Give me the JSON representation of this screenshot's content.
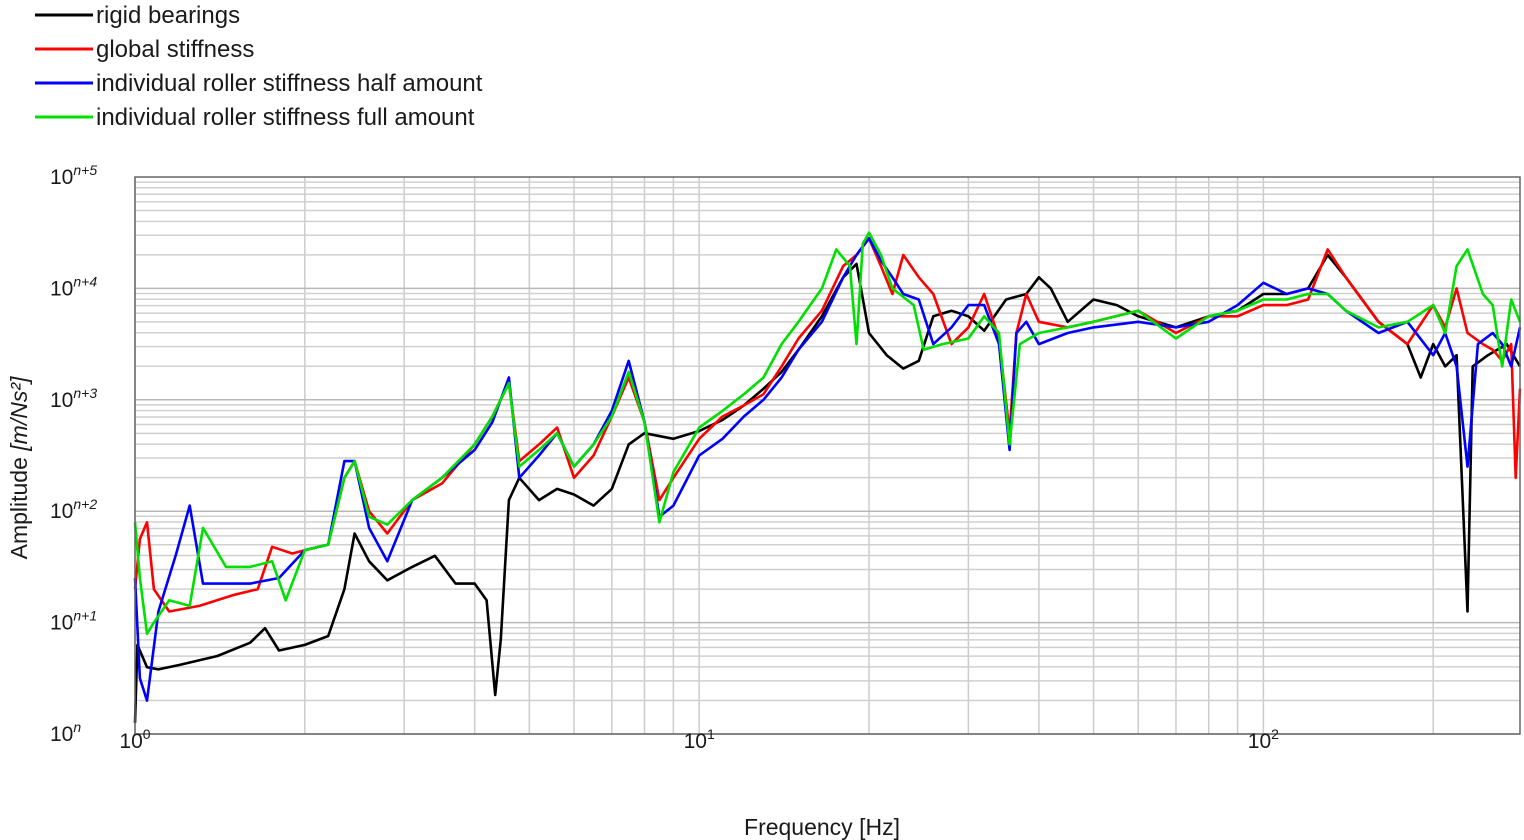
{
  "chart_data": {
    "type": "line",
    "title": "",
    "xlabel": "Frequency [Hz]",
    "ylabel_prefix": "Amplitude ",
    "ylabel_unit": "[m/Ns²]",
    "x_scale": "log",
    "y_scale": "log",
    "xlim": [
      1,
      285
    ],
    "ylim": [
      0,
      5
    ],
    "grid": true,
    "legend_position": "top-left, above plot",
    "x_ticks": [
      {
        "value": 1,
        "base": "10",
        "exp": "0"
      },
      {
        "value": 10,
        "base": "10",
        "exp": "1"
      },
      {
        "value": 100,
        "base": "10",
        "exp": "2"
      }
    ],
    "y_ticks": [
      {
        "value": 0,
        "base": "10",
        "exp": "n"
      },
      {
        "value": 1,
        "base": "10",
        "exp": "n+1"
      },
      {
        "value": 2,
        "base": "10",
        "exp": "n+2"
      },
      {
        "value": 3,
        "base": "10",
        "exp": "n+3"
      },
      {
        "value": 4,
        "base": "10",
        "exp": "n+4"
      },
      {
        "value": 5,
        "base": "10",
        "exp": "n+5"
      }
    ],
    "y_units_note": "y values are exponents above 10^n",
    "series": [
      {
        "name": "rigid bearings",
        "color": "#000000",
        "points": [
          [
            1.0,
            0.1
          ],
          [
            1.01,
            0.8
          ],
          [
            1.05,
            0.6
          ],
          [
            1.1,
            0.58
          ],
          [
            1.2,
            0.62
          ],
          [
            1.4,
            0.7
          ],
          [
            1.6,
            0.82
          ],
          [
            1.7,
            0.95
          ],
          [
            1.8,
            0.75
          ],
          [
            2.0,
            0.8
          ],
          [
            2.2,
            0.88
          ],
          [
            2.35,
            1.3
          ],
          [
            2.45,
            1.8
          ],
          [
            2.6,
            1.55
          ],
          [
            2.8,
            1.38
          ],
          [
            3.1,
            1.5
          ],
          [
            3.4,
            1.6
          ],
          [
            3.7,
            1.35
          ],
          [
            4.0,
            1.35
          ],
          [
            4.2,
            1.2
          ],
          [
            4.35,
            0.35
          ],
          [
            4.45,
            0.85
          ],
          [
            4.6,
            2.1
          ],
          [
            4.8,
            2.3
          ],
          [
            5.2,
            2.1
          ],
          [
            5.6,
            2.2
          ],
          [
            6.0,
            2.15
          ],
          [
            6.5,
            2.05
          ],
          [
            7.0,
            2.2
          ],
          [
            7.5,
            2.6
          ],
          [
            8.0,
            2.7
          ],
          [
            9.0,
            2.65
          ],
          [
            10.0,
            2.72
          ],
          [
            11.0,
            2.82
          ],
          [
            12.0,
            2.95
          ],
          [
            13.0,
            3.1
          ],
          [
            14.0,
            3.25
          ],
          [
            15.0,
            3.45
          ],
          [
            16.5,
            3.75
          ],
          [
            18.0,
            4.1
          ],
          [
            19.0,
            4.22
          ],
          [
            20.0,
            3.6
          ],
          [
            21.5,
            3.4
          ],
          [
            23.0,
            3.28
          ],
          [
            24.5,
            3.35
          ],
          [
            26.0,
            3.75
          ],
          [
            28.0,
            3.8
          ],
          [
            30.0,
            3.75
          ],
          [
            32.0,
            3.62
          ],
          [
            35.0,
            3.9
          ],
          [
            38.0,
            3.95
          ],
          [
            40.0,
            4.1
          ],
          [
            42.0,
            4.0
          ],
          [
            45.0,
            3.7
          ],
          [
            50.0,
            3.9
          ],
          [
            55.0,
            3.85
          ],
          [
            60.0,
            3.75
          ],
          [
            70.0,
            3.65
          ],
          [
            80.0,
            3.75
          ],
          [
            90.0,
            3.8
          ],
          [
            100.0,
            3.95
          ],
          [
            110.0,
            3.95
          ],
          [
            120.0,
            4.0
          ],
          [
            130.0,
            4.3
          ],
          [
            140.0,
            4.1
          ],
          [
            160.0,
            3.7
          ],
          [
            180.0,
            3.5
          ],
          [
            190.0,
            3.2
          ],
          [
            200.0,
            3.5
          ],
          [
            210.0,
            3.3
          ],
          [
            220.0,
            3.4
          ],
          [
            230.0,
            1.1
          ],
          [
            235.0,
            3.3
          ],
          [
            250.0,
            3.4
          ],
          [
            270.0,
            3.5
          ],
          [
            285.0,
            3.3
          ]
        ]
      },
      {
        "name": "global stiffness",
        "color": "#ff0000",
        "points": [
          [
            1.0,
            1.3
          ],
          [
            1.02,
            1.75
          ],
          [
            1.05,
            1.9
          ],
          [
            1.08,
            1.3
          ],
          [
            1.15,
            1.1
          ],
          [
            1.3,
            1.15
          ],
          [
            1.5,
            1.25
          ],
          [
            1.65,
            1.3
          ],
          [
            1.75,
            1.68
          ],
          [
            1.9,
            1.62
          ],
          [
            2.0,
            1.65
          ],
          [
            2.2,
            1.7
          ],
          [
            2.35,
            2.3
          ],
          [
            2.45,
            2.45
          ],
          [
            2.6,
            2.0
          ],
          [
            2.8,
            1.8
          ],
          [
            3.1,
            2.1
          ],
          [
            3.5,
            2.25
          ],
          [
            4.0,
            2.6
          ],
          [
            4.3,
            2.85
          ],
          [
            4.6,
            3.15
          ],
          [
            4.8,
            2.45
          ],
          [
            5.2,
            2.6
          ],
          [
            5.6,
            2.75
          ],
          [
            6.0,
            2.3
          ],
          [
            6.5,
            2.5
          ],
          [
            7.0,
            2.85
          ],
          [
            7.5,
            3.2
          ],
          [
            8.0,
            2.8
          ],
          [
            8.5,
            2.1
          ],
          [
            9.0,
            2.3
          ],
          [
            10.0,
            2.65
          ],
          [
            11.0,
            2.85
          ],
          [
            12.0,
            2.95
          ],
          [
            13.0,
            3.05
          ],
          [
            14.0,
            3.3
          ],
          [
            15.0,
            3.55
          ],
          [
            16.5,
            3.8
          ],
          [
            18.0,
            4.2
          ],
          [
            19.0,
            4.3
          ],
          [
            20.0,
            4.45
          ],
          [
            21.0,
            4.2
          ],
          [
            22.0,
            3.95
          ],
          [
            23.0,
            4.3
          ],
          [
            24.5,
            4.1
          ],
          [
            26.0,
            3.95
          ],
          [
            28.0,
            3.5
          ],
          [
            30.0,
            3.65
          ],
          [
            32.0,
            3.95
          ],
          [
            34.0,
            3.55
          ],
          [
            35.5,
            2.7
          ],
          [
            36.5,
            3.6
          ],
          [
            38.0,
            3.95
          ],
          [
            40.0,
            3.7
          ],
          [
            45.0,
            3.65
          ],
          [
            50.0,
            3.7
          ],
          [
            60.0,
            3.8
          ],
          [
            70.0,
            3.6
          ],
          [
            80.0,
            3.75
          ],
          [
            90.0,
            3.75
          ],
          [
            100.0,
            3.85
          ],
          [
            110.0,
            3.85
          ],
          [
            120.0,
            3.9
          ],
          [
            130.0,
            4.35
          ],
          [
            140.0,
            4.1
          ],
          [
            160.0,
            3.7
          ],
          [
            180.0,
            3.5
          ],
          [
            200.0,
            3.85
          ],
          [
            210.0,
            3.65
          ],
          [
            220.0,
            4.0
          ],
          [
            230.0,
            3.6
          ],
          [
            245.0,
            3.5
          ],
          [
            255.0,
            3.45
          ],
          [
            265.0,
            3.35
          ],
          [
            275.0,
            3.5
          ],
          [
            280.0,
            2.3
          ],
          [
            285.0,
            3.1
          ]
        ]
      },
      {
        "name": "individual roller stiffness half amount",
        "color": "#0000ff",
        "points": [
          [
            1.0,
            1.4
          ],
          [
            1.02,
            0.5
          ],
          [
            1.05,
            0.3
          ],
          [
            1.1,
            1.1
          ],
          [
            1.18,
            1.6
          ],
          [
            1.25,
            2.05
          ],
          [
            1.32,
            1.35
          ],
          [
            1.45,
            1.35
          ],
          [
            1.6,
            1.35
          ],
          [
            1.8,
            1.4
          ],
          [
            2.0,
            1.65
          ],
          [
            2.2,
            1.7
          ],
          [
            2.35,
            2.45
          ],
          [
            2.45,
            2.45
          ],
          [
            2.6,
            1.85
          ],
          [
            2.8,
            1.55
          ],
          [
            3.1,
            2.1
          ],
          [
            3.5,
            2.3
          ],
          [
            4.0,
            2.55
          ],
          [
            4.3,
            2.8
          ],
          [
            4.6,
            3.2
          ],
          [
            4.8,
            2.3
          ],
          [
            5.2,
            2.5
          ],
          [
            5.6,
            2.7
          ],
          [
            6.0,
            2.4
          ],
          [
            6.5,
            2.6
          ],
          [
            7.0,
            2.9
          ],
          [
            7.5,
            3.35
          ],
          [
            8.0,
            2.8
          ],
          [
            8.5,
            1.95
          ],
          [
            9.0,
            2.05
          ],
          [
            10.0,
            2.5
          ],
          [
            11.0,
            2.65
          ],
          [
            12.0,
            2.85
          ],
          [
            13.0,
            3.0
          ],
          [
            14.0,
            3.2
          ],
          [
            15.0,
            3.45
          ],
          [
            16.5,
            3.7
          ],
          [
            18.0,
            4.1
          ],
          [
            19.0,
            4.3
          ],
          [
            20.0,
            4.45
          ],
          [
            21.0,
            4.25
          ],
          [
            22.0,
            4.1
          ],
          [
            23.0,
            3.95
          ],
          [
            24.5,
            3.9
          ],
          [
            26.0,
            3.5
          ],
          [
            28.0,
            3.65
          ],
          [
            30.0,
            3.85
          ],
          [
            32.0,
            3.85
          ],
          [
            34.0,
            3.5
          ],
          [
            35.5,
            2.55
          ],
          [
            36.5,
            3.6
          ],
          [
            38.0,
            3.7
          ],
          [
            40.0,
            3.5
          ],
          [
            45.0,
            3.6
          ],
          [
            50.0,
            3.65
          ],
          [
            60.0,
            3.7
          ],
          [
            70.0,
            3.65
          ],
          [
            80.0,
            3.7
          ],
          [
            90.0,
            3.85
          ],
          [
            100.0,
            4.05
          ],
          [
            110.0,
            3.95
          ],
          [
            120.0,
            4.0
          ],
          [
            130.0,
            3.95
          ],
          [
            140.0,
            3.8
          ],
          [
            160.0,
            3.6
          ],
          [
            180.0,
            3.7
          ],
          [
            200.0,
            3.4
          ],
          [
            210.0,
            3.6
          ],
          [
            220.0,
            3.3
          ],
          [
            230.0,
            2.4
          ],
          [
            240.0,
            3.5
          ],
          [
            255.0,
            3.6
          ],
          [
            265.0,
            3.5
          ],
          [
            275.0,
            3.3
          ],
          [
            285.0,
            3.65
          ]
        ]
      },
      {
        "name": "individual roller stiffness full amount",
        "color": "#00e000",
        "points": [
          [
            1.0,
            1.9
          ],
          [
            1.02,
            1.4
          ],
          [
            1.05,
            0.9
          ],
          [
            1.08,
            1.0
          ],
          [
            1.15,
            1.2
          ],
          [
            1.25,
            1.15
          ],
          [
            1.32,
            1.85
          ],
          [
            1.45,
            1.5
          ],
          [
            1.6,
            1.5
          ],
          [
            1.75,
            1.55
          ],
          [
            1.85,
            1.2
          ],
          [
            2.0,
            1.65
          ],
          [
            2.2,
            1.7
          ],
          [
            2.35,
            2.3
          ],
          [
            2.45,
            2.45
          ],
          [
            2.6,
            1.95
          ],
          [
            2.8,
            1.88
          ],
          [
            3.1,
            2.1
          ],
          [
            3.5,
            2.3
          ],
          [
            4.0,
            2.6
          ],
          [
            4.3,
            2.85
          ],
          [
            4.6,
            3.15
          ],
          [
            4.8,
            2.4
          ],
          [
            5.2,
            2.55
          ],
          [
            5.6,
            2.7
          ],
          [
            6.0,
            2.4
          ],
          [
            6.5,
            2.6
          ],
          [
            7.0,
            2.85
          ],
          [
            7.5,
            3.25
          ],
          [
            8.0,
            2.8
          ],
          [
            8.5,
            1.9
          ],
          [
            9.0,
            2.35
          ],
          [
            10.0,
            2.75
          ],
          [
            11.0,
            2.9
          ],
          [
            12.0,
            3.05
          ],
          [
            13.0,
            3.2
          ],
          [
            14.0,
            3.5
          ],
          [
            15.0,
            3.7
          ],
          [
            16.5,
            4.0
          ],
          [
            17.5,
            4.35
          ],
          [
            18.5,
            4.2
          ],
          [
            19.0,
            3.5
          ],
          [
            19.5,
            4.4
          ],
          [
            20.0,
            4.5
          ],
          [
            21.0,
            4.3
          ],
          [
            22.0,
            4.0
          ],
          [
            24.0,
            3.85
          ],
          [
            25.0,
            3.45
          ],
          [
            27.0,
            3.5
          ],
          [
            30.0,
            3.55
          ],
          [
            32.0,
            3.75
          ],
          [
            34.0,
            3.6
          ],
          [
            35.5,
            2.6
          ],
          [
            37.0,
            3.5
          ],
          [
            40.0,
            3.6
          ],
          [
            45.0,
            3.65
          ],
          [
            50.0,
            3.7
          ],
          [
            60.0,
            3.8
          ],
          [
            70.0,
            3.55
          ],
          [
            80.0,
            3.75
          ],
          [
            90.0,
            3.8
          ],
          [
            100.0,
            3.9
          ],
          [
            110.0,
            3.9
          ],
          [
            120.0,
            3.95
          ],
          [
            130.0,
            3.95
          ],
          [
            140.0,
            3.8
          ],
          [
            160.0,
            3.65
          ],
          [
            180.0,
            3.7
          ],
          [
            200.0,
            3.85
          ],
          [
            210.0,
            3.6
          ],
          [
            220.0,
            4.2
          ],
          [
            230.0,
            4.35
          ],
          [
            245.0,
            3.95
          ],
          [
            255.0,
            3.85
          ],
          [
            265.0,
            3.3
          ],
          [
            275.0,
            3.9
          ],
          [
            285.0,
            3.7
          ]
        ]
      }
    ]
  }
}
